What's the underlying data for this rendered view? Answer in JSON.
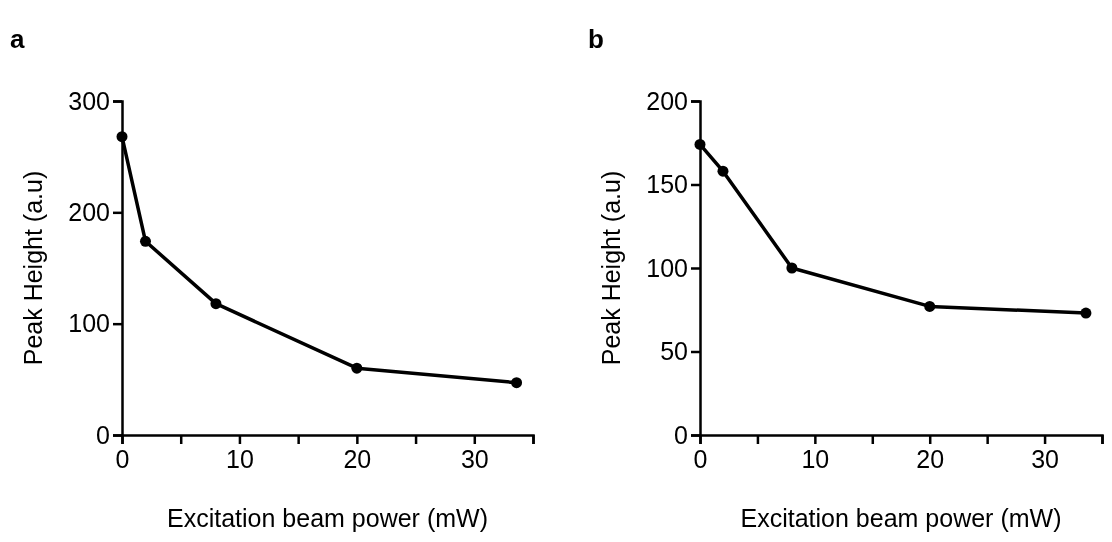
{
  "chart_data": [
    {
      "type": "line",
      "title": "a",
      "xlabel": "Excitation beam power (mW)",
      "ylabel": "Peak Height (a.u)",
      "x": [
        0,
        2,
        8,
        20,
        33.6
      ],
      "series": [
        {
          "color": "#000000",
          "values": [
            268,
            174,
            118,
            60,
            47
          ]
        }
      ],
      "xlim": [
        0,
        35
      ],
      "ylim": [
        0,
        300
      ],
      "xticks": [
        0,
        {
          "value": 5,
          "label": null
        },
        10,
        {
          "value": 15,
          "label": null
        },
        20,
        {
          "value": 25,
          "label": null
        },
        30,
        {
          "value": 35,
          "label": null
        }
      ],
      "yticks": [
        0,
        100,
        200,
        300
      ],
      "marker": "circle",
      "line_style": "solid"
    },
    {
      "type": "line",
      "title": "b",
      "xlabel": "Excitation beam power (mW)",
      "ylabel": "Peak Height (a.u)",
      "x": [
        0,
        2,
        8,
        20,
        33.6
      ],
      "series": [
        {
          "color": "#000000",
          "values": [
            174,
            158,
            100,
            77,
            73
          ]
        }
      ],
      "xlim": [
        0,
        35
      ],
      "ylim": [
        0,
        200
      ],
      "xticks": [
        0,
        {
          "value": 5,
          "label": null
        },
        10,
        {
          "value": 15,
          "label": null
        },
        20,
        {
          "value": 25,
          "label": null
        },
        30,
        {
          "value": 35,
          "label": null
        }
      ],
      "yticks": [
        0,
        50,
        100,
        150,
        200
      ],
      "marker": "circle",
      "line_style": "solid"
    }
  ]
}
